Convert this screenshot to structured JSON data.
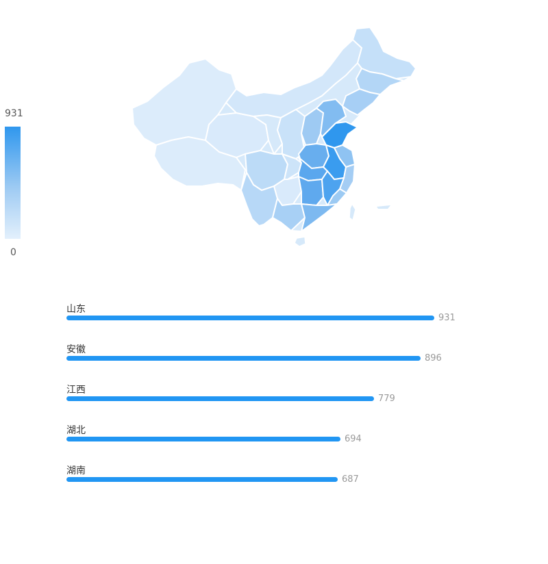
{
  "chart_data": [
    {
      "type": "choropleth-map",
      "visual_map": {
        "min": 0,
        "max": 931,
        "max_label": "931",
        "min_label": "0"
      },
      "regions": [
        {
          "name": "山东",
          "value": 931
        },
        {
          "name": "安徽",
          "value": 896
        },
        {
          "name": "江西",
          "value": 779
        },
        {
          "name": "湖北",
          "value": 694
        },
        {
          "name": "湖南",
          "value": 687
        }
      ]
    },
    {
      "type": "bar",
      "orientation": "horizontal",
      "categories": [
        "山东",
        "安徽",
        "江西",
        "湖北",
        "湖南"
      ],
      "values": [
        931,
        896,
        779,
        694,
        687
      ],
      "xlim": [
        0,
        931
      ]
    }
  ],
  "colors": {
    "bar": "#2196f3",
    "map_high": "#2f97ee",
    "map_low": "#e3f0fc",
    "border": "#ffffff"
  }
}
